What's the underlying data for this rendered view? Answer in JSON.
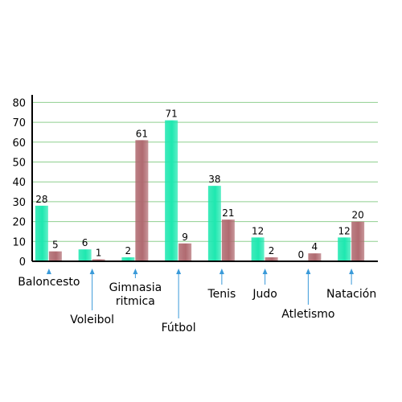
{
  "chart_data": {
    "type": "bar",
    "categories": [
      "Baloncesto",
      "Voleibol",
      "Gimnasia ritmica",
      "Fútbol",
      "Tenis",
      "Judo",
      "Atletismo",
      "Natación"
    ],
    "category_lines": [
      [
        "Baloncesto"
      ],
      [
        "Voleibol"
      ],
      [
        "Gimnasia",
        "ritmica"
      ],
      [
        "Fútbol"
      ],
      [
        "Tenis"
      ],
      [
        "Judo"
      ],
      [
        "Atletismo"
      ],
      [
        "Natación"
      ]
    ],
    "series": [
      {
        "values": [
          28,
          6,
          2,
          71,
          38,
          12,
          0,
          12
        ],
        "color": "#1ee8b0"
      },
      {
        "values": [
          5,
          1,
          61,
          9,
          21,
          2,
          4,
          20
        ],
        "color": "#b06a70"
      }
    ],
    "yticks": [
      0,
      10,
      20,
      30,
      40,
      50,
      60,
      70,
      80
    ],
    "ylim": [
      0,
      83
    ],
    "grid": true,
    "gridline_color": "#8fcf8f",
    "axis_color": "#000000",
    "callout_color": "#3a9ad9",
    "title": "",
    "xlabel": "",
    "ylabel": ""
  }
}
